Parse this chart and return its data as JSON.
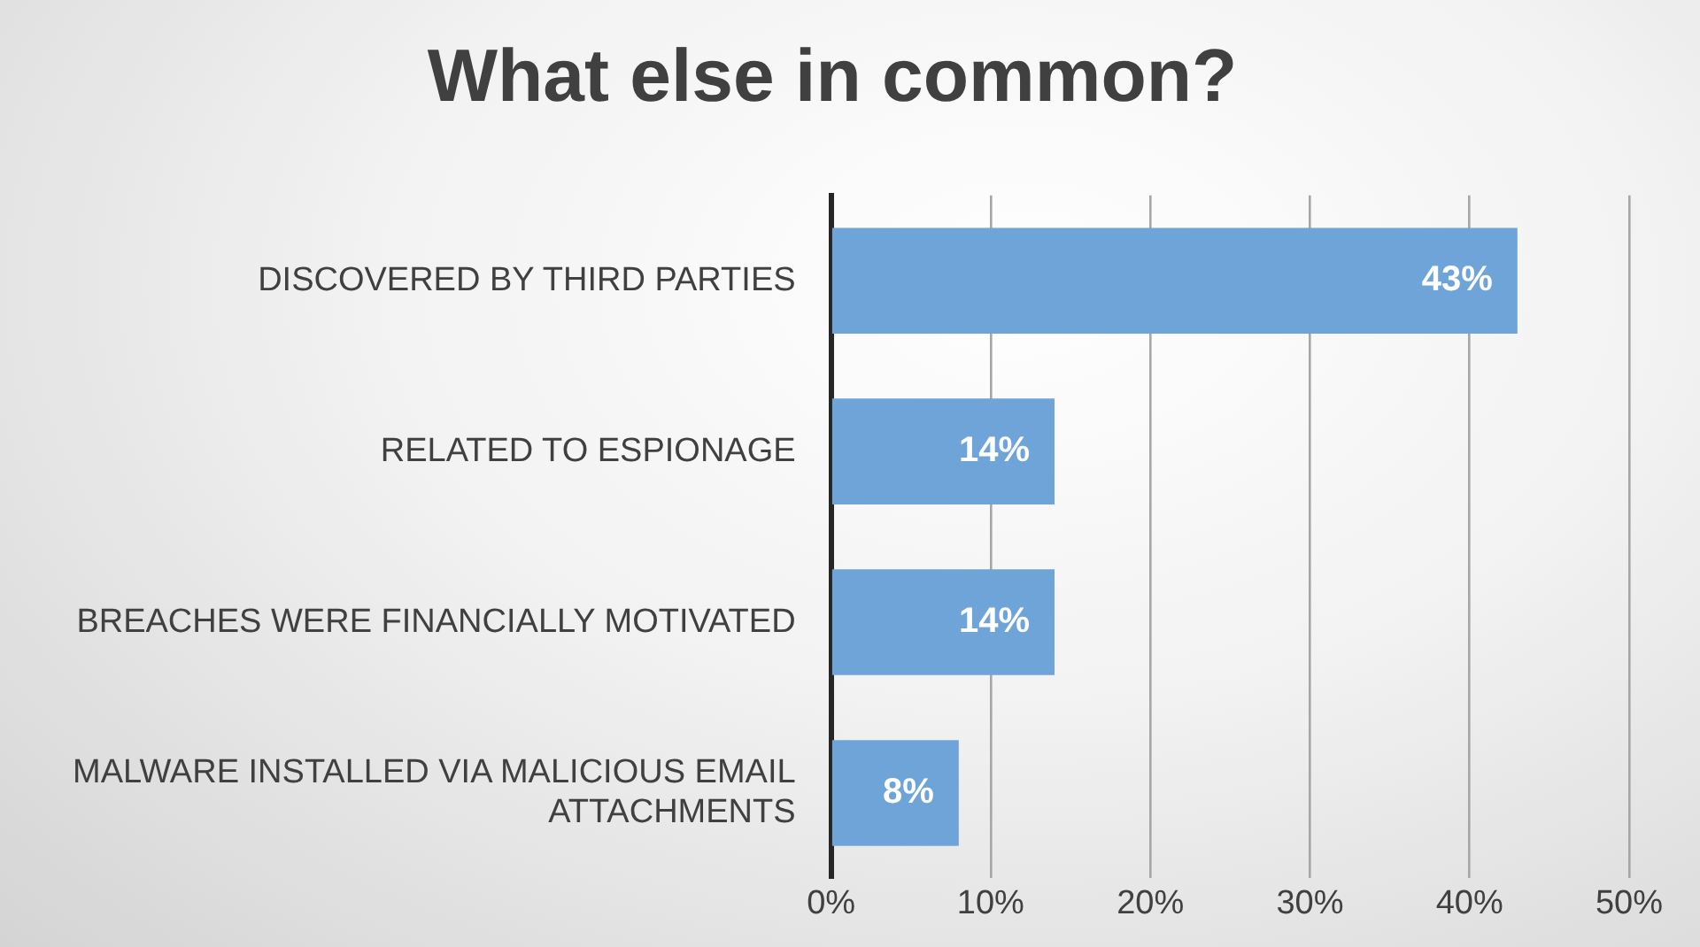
{
  "chart_data": {
    "type": "bar",
    "orientation": "horizontal",
    "title": "What else in common?",
    "categories": [
      "DISCOVERED BY THIRD PARTIES",
      "RELATED TO ESPIONAGE",
      "BREACHES WERE FINANCIALLY MOTIVATED",
      "MALWARE INSTALLED VIA MALICIOUS EMAIL ATTACHMENTS"
    ],
    "values": [
      43,
      14,
      14,
      8
    ],
    "value_labels": [
      "43%",
      "14%",
      "14%",
      "8%"
    ],
    "color": "#6fa4d8",
    "xlim": [
      0,
      50
    ],
    "xticks": [
      {
        "value": 0,
        "label": "0%"
      },
      {
        "value": 10,
        "label": "10%"
      },
      {
        "value": 20,
        "label": "20%"
      },
      {
        "value": 30,
        "label": "30%"
      },
      {
        "value": 40,
        "label": "40%"
      },
      {
        "value": 50,
        "label": "50%"
      }
    ],
    "grid": "x",
    "legend": false
  }
}
